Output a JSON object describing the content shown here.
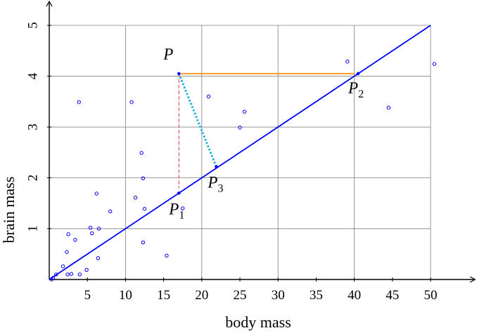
{
  "chart_data": {
    "type": "scatter",
    "x_label": "body mass",
    "y_label": "brain mass",
    "xlim": [
      0,
      55
    ],
    "ylim": [
      0,
      5.5
    ],
    "xticks": [
      5,
      10,
      15,
      20,
      25,
      30,
      35,
      40,
      45,
      50
    ],
    "yticks": [
      1,
      2,
      3,
      4,
      5
    ],
    "xgrid": [
      10,
      20,
      30,
      40,
      50
    ],
    "grid": true,
    "points": {
      "color": "#0000ff",
      "x": [
        0.3,
        0.5,
        0.9,
        1.8,
        2.3,
        2.5,
        2.4,
        2.9,
        3.4,
        3.9,
        4.0,
        4.9,
        5.4,
        5.6,
        6.2,
        6.4,
        6.5,
        8.0,
        10.8,
        11.3,
        12.1,
        12.3,
        12.3,
        12.5,
        15.4,
        17.5,
        20.9,
        25.0,
        25.6,
        39.1,
        44.5,
        50.5
      ],
      "y": [
        0.0,
        0.03,
        0.1,
        0.26,
        0.54,
        0.89,
        0.1,
        0.11,
        0.78,
        3.49,
        0.1,
        0.19,
        1.02,
        0.91,
        1.69,
        0.42,
        1.0,
        1.34,
        3.49,
        1.61,
        2.49,
        1.99,
        0.73,
        1.39,
        0.47,
        1.4,
        3.6,
        2.99,
        3.3,
        4.29,
        3.38,
        4.24
      ]
    },
    "fit": {
      "color": "#0000ff",
      "x": [
        0,
        50
      ],
      "y": [
        0,
        5
      ]
    },
    "segments": [
      {
        "color": "#ff8c00",
        "style": "solid",
        "x": [
          17,
          40
        ],
        "y": [
          4.05,
          4.05
        ]
      },
      {
        "color": "#e03030",
        "style": "dashed",
        "x": [
          17,
          17
        ],
        "y": [
          4.05,
          1.8
        ]
      },
      {
        "color": "#1fb0e0",
        "style": "dotted",
        "x": [
          17,
          21.9
        ],
        "y": [
          4.05,
          2.22
        ]
      }
    ],
    "annotations": [
      {
        "label": "P",
        "x": 17,
        "y": 4.05
      },
      {
        "label": "P",
        "sub": "1",
        "x": 17,
        "y": 1.7
      },
      {
        "label": "P",
        "sub": "2",
        "x": 40.5,
        "y": 4.05
      },
      {
        "label": "P",
        "sub": "3",
        "x": 21.9,
        "y": 2.22
      }
    ]
  }
}
